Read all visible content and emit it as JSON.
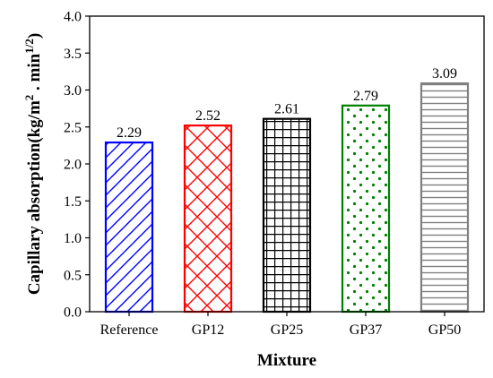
{
  "chart_data": {
    "type": "bar",
    "categories": [
      "Reference",
      "GP12",
      "GP25",
      "GP37",
      "GP50"
    ],
    "values": [
      2.29,
      2.52,
      2.61,
      2.79,
      3.09
    ],
    "value_labels": [
      "2.29",
      "2.52",
      "2.61",
      "2.79",
      "3.09"
    ],
    "xlabel": "Mixture",
    "ylabel_main": "Capillary absorption(kg/m",
    "ylabel_sup1": "2",
    "ylabel_mid": " . min",
    "ylabel_sup2": "1/2",
    "ylabel_end": ")",
    "ylim": [
      0,
      4.0
    ],
    "yticks": [
      "0.0",
      "0.5",
      "1.0",
      "1.5",
      "2.0",
      "2.5",
      "3.0",
      "3.5",
      "4.0"
    ],
    "grid": false,
    "bar_colors": [
      "#0000ff",
      "#ff0000",
      "#000000",
      "#008000",
      "#808080"
    ],
    "bar_patterns": [
      "diagonal-hatch",
      "cross-hatch",
      "grid",
      "dots",
      "horizontal-lines"
    ]
  }
}
